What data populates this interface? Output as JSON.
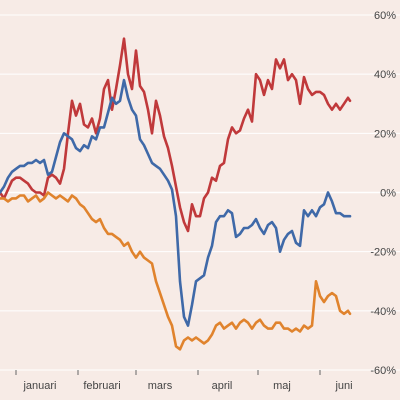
{
  "chart_data": {
    "type": "line",
    "title": "",
    "xlabel": "",
    "ylabel": "",
    "x_unit": "day",
    "x_range": [
      0,
      175
    ],
    "ylim": [
      -60,
      60
    ],
    "yticks": [
      {
        "value": 60,
        "label": "60%"
      },
      {
        "value": 40,
        "label": "40%"
      },
      {
        "value": 20,
        "label": "20%"
      },
      {
        "value": 0,
        "label": "0%"
      },
      {
        "value": -20,
        "label": "-20%"
      },
      {
        "value": -40,
        "label": "-40%"
      },
      {
        "value": -60,
        "label": "-60%"
      }
    ],
    "xticks": [
      {
        "value": 8,
        "label": "januari"
      },
      {
        "value": 39,
        "label": "februari"
      },
      {
        "value": 68,
        "label": "mars"
      },
      {
        "value": 99,
        "label": "april"
      },
      {
        "value": 129,
        "label": "maj"
      },
      {
        "value": 160,
        "label": "juni"
      }
    ],
    "grid": true,
    "series": [
      {
        "color": "#c0393b",
        "points": [
          [
            0,
            0
          ],
          [
            2,
            -2
          ],
          [
            4,
            1
          ],
          [
            6,
            4
          ],
          [
            8,
            5
          ],
          [
            10,
            5
          ],
          [
            12,
            4
          ],
          [
            14,
            3
          ],
          [
            16,
            1
          ],
          [
            18,
            0
          ],
          [
            20,
            0
          ],
          [
            22,
            -1
          ],
          [
            24,
            5
          ],
          [
            26,
            6
          ],
          [
            28,
            5
          ],
          [
            30,
            3
          ],
          [
            32,
            8
          ],
          [
            34,
            20
          ],
          [
            36,
            31
          ],
          [
            38,
            26
          ],
          [
            40,
            30
          ],
          [
            42,
            23
          ],
          [
            44,
            22
          ],
          [
            46,
            25
          ],
          [
            48,
            20
          ],
          [
            50,
            25
          ],
          [
            52,
            35
          ],
          [
            54,
            38
          ],
          [
            56,
            28
          ],
          [
            58,
            35
          ],
          [
            60,
            43
          ],
          [
            62,
            52
          ],
          [
            64,
            40
          ],
          [
            66,
            35
          ],
          [
            68,
            48
          ],
          [
            70,
            36
          ],
          [
            72,
            34
          ],
          [
            74,
            28
          ],
          [
            76,
            20
          ],
          [
            78,
            31
          ],
          [
            80,
            26
          ],
          [
            82,
            19
          ],
          [
            84,
            15
          ],
          [
            86,
            9
          ],
          [
            88,
            2
          ],
          [
            90,
            -5
          ],
          [
            92,
            -10
          ],
          [
            94,
            -13
          ],
          [
            96,
            -4
          ],
          [
            98,
            -8
          ],
          [
            100,
            -8
          ],
          [
            102,
            -2
          ],
          [
            104,
            0
          ],
          [
            106,
            5
          ],
          [
            108,
            4
          ],
          [
            110,
            9
          ],
          [
            112,
            10
          ],
          [
            114,
            18
          ],
          [
            116,
            22
          ],
          [
            118,
            20
          ],
          [
            120,
            21
          ],
          [
            122,
            25
          ],
          [
            124,
            28
          ],
          [
            126,
            24
          ],
          [
            128,
            40
          ],
          [
            130,
            38
          ],
          [
            132,
            33
          ],
          [
            134,
            38
          ],
          [
            136,
            35
          ],
          [
            138,
            45
          ],
          [
            140,
            42
          ],
          [
            142,
            45
          ],
          [
            144,
            38
          ],
          [
            146,
            40
          ],
          [
            148,
            38
          ],
          [
            150,
            30
          ],
          [
            152,
            39
          ],
          [
            154,
            35
          ],
          [
            156,
            33
          ],
          [
            158,
            34
          ],
          [
            160,
            34
          ],
          [
            162,
            33
          ],
          [
            164,
            30
          ],
          [
            166,
            28
          ],
          [
            168,
            30
          ],
          [
            170,
            28
          ],
          [
            172,
            30
          ],
          [
            174,
            32
          ],
          [
            175,
            31
          ]
        ]
      },
      {
        "color": "#3f69a8",
        "points": [
          [
            0,
            0
          ],
          [
            2,
            2
          ],
          [
            4,
            5
          ],
          [
            6,
            7
          ],
          [
            8,
            8
          ],
          [
            10,
            9
          ],
          [
            12,
            9
          ],
          [
            14,
            10
          ],
          [
            16,
            10
          ],
          [
            18,
            11
          ],
          [
            20,
            10
          ],
          [
            22,
            11
          ],
          [
            24,
            6
          ],
          [
            26,
            7
          ],
          [
            28,
            12
          ],
          [
            30,
            17
          ],
          [
            32,
            20
          ],
          [
            34,
            19
          ],
          [
            36,
            18
          ],
          [
            38,
            15
          ],
          [
            40,
            14
          ],
          [
            42,
            16
          ],
          [
            44,
            15
          ],
          [
            46,
            19
          ],
          [
            48,
            18
          ],
          [
            50,
            22
          ],
          [
            52,
            22
          ],
          [
            54,
            27
          ],
          [
            56,
            32
          ],
          [
            58,
            30
          ],
          [
            60,
            31
          ],
          [
            62,
            38
          ],
          [
            64,
            32
          ],
          [
            66,
            28
          ],
          [
            68,
            26
          ],
          [
            70,
            18
          ],
          [
            72,
            16
          ],
          [
            74,
            13
          ],
          [
            76,
            10
          ],
          [
            78,
            9
          ],
          [
            80,
            8
          ],
          [
            82,
            6
          ],
          [
            84,
            4
          ],
          [
            86,
            1
          ],
          [
            88,
            -8
          ],
          [
            90,
            -30
          ],
          [
            92,
            -42
          ],
          [
            94,
            -45
          ],
          [
            96,
            -38
          ],
          [
            98,
            -30
          ],
          [
            100,
            -29
          ],
          [
            102,
            -28
          ],
          [
            104,
            -22
          ],
          [
            106,
            -18
          ],
          [
            108,
            -10
          ],
          [
            110,
            -8
          ],
          [
            112,
            -8
          ],
          [
            114,
            -6
          ],
          [
            116,
            -7
          ],
          [
            118,
            -15
          ],
          [
            120,
            -14
          ],
          [
            122,
            -12
          ],
          [
            124,
            -12
          ],
          [
            126,
            -11
          ],
          [
            128,
            -9
          ],
          [
            130,
            -12
          ],
          [
            132,
            -14
          ],
          [
            134,
            -11
          ],
          [
            136,
            -10
          ],
          [
            138,
            -12
          ],
          [
            140,
            -20
          ],
          [
            142,
            -16
          ],
          [
            144,
            -14
          ],
          [
            146,
            -13
          ],
          [
            148,
            -17
          ],
          [
            150,
            -18
          ],
          [
            152,
            -6
          ],
          [
            154,
            -8
          ],
          [
            156,
            -6
          ],
          [
            158,
            -8
          ],
          [
            160,
            -5
          ],
          [
            162,
            -4
          ],
          [
            164,
            0
          ],
          [
            166,
            -3
          ],
          [
            168,
            -7
          ],
          [
            170,
            -7
          ],
          [
            172,
            -8
          ],
          [
            174,
            -8
          ],
          [
            175,
            -8
          ]
        ]
      },
      {
        "color": "#e0832d",
        "points": [
          [
            0,
            -2
          ],
          [
            2,
            -2
          ],
          [
            4,
            -3
          ],
          [
            6,
            -2
          ],
          [
            8,
            -2
          ],
          [
            10,
            -1
          ],
          [
            12,
            -1
          ],
          [
            14,
            -3
          ],
          [
            16,
            -2
          ],
          [
            18,
            -1
          ],
          [
            20,
            -3
          ],
          [
            22,
            -2
          ],
          [
            24,
            0
          ],
          [
            26,
            -1
          ],
          [
            28,
            -2
          ],
          [
            30,
            -1
          ],
          [
            32,
            -2
          ],
          [
            34,
            -3
          ],
          [
            36,
            -1
          ],
          [
            38,
            -2
          ],
          [
            40,
            -4
          ],
          [
            42,
            -5
          ],
          [
            44,
            -7
          ],
          [
            46,
            -9
          ],
          [
            48,
            -10
          ],
          [
            50,
            -9
          ],
          [
            52,
            -12
          ],
          [
            54,
            -14
          ],
          [
            56,
            -14
          ],
          [
            58,
            -15
          ],
          [
            60,
            -16
          ],
          [
            62,
            -18
          ],
          [
            64,
            -17
          ],
          [
            66,
            -20
          ],
          [
            68,
            -22
          ],
          [
            70,
            -20
          ],
          [
            72,
            -22
          ],
          [
            74,
            -23
          ],
          [
            76,
            -24
          ],
          [
            78,
            -30
          ],
          [
            80,
            -34
          ],
          [
            82,
            -38
          ],
          [
            84,
            -42
          ],
          [
            86,
            -45
          ],
          [
            88,
            -52
          ],
          [
            90,
            -53
          ],
          [
            92,
            -50
          ],
          [
            94,
            -49
          ],
          [
            96,
            -50
          ],
          [
            98,
            -49
          ],
          [
            100,
            -50
          ],
          [
            102,
            -51
          ],
          [
            104,
            -50
          ],
          [
            106,
            -48
          ],
          [
            108,
            -45
          ],
          [
            110,
            -44
          ],
          [
            112,
            -46
          ],
          [
            114,
            -45
          ],
          [
            116,
            -44
          ],
          [
            118,
            -46
          ],
          [
            120,
            -44
          ],
          [
            122,
            -43
          ],
          [
            124,
            -44
          ],
          [
            126,
            -46
          ],
          [
            128,
            -44
          ],
          [
            130,
            -43
          ],
          [
            132,
            -45
          ],
          [
            134,
            -46
          ],
          [
            136,
            -46
          ],
          [
            138,
            -44
          ],
          [
            140,
            -44
          ],
          [
            142,
            -46
          ],
          [
            144,
            -46
          ],
          [
            146,
            -47
          ],
          [
            148,
            -46
          ],
          [
            150,
            -47
          ],
          [
            152,
            -45
          ],
          [
            154,
            -46
          ],
          [
            156,
            -45
          ],
          [
            158,
            -30
          ],
          [
            160,
            -35
          ],
          [
            162,
            -37
          ],
          [
            164,
            -35
          ],
          [
            166,
            -34
          ],
          [
            168,
            -35
          ],
          [
            170,
            -40
          ],
          [
            172,
            -41
          ],
          [
            174,
            -40
          ],
          [
            175,
            -41
          ]
        ]
      }
    ]
  }
}
